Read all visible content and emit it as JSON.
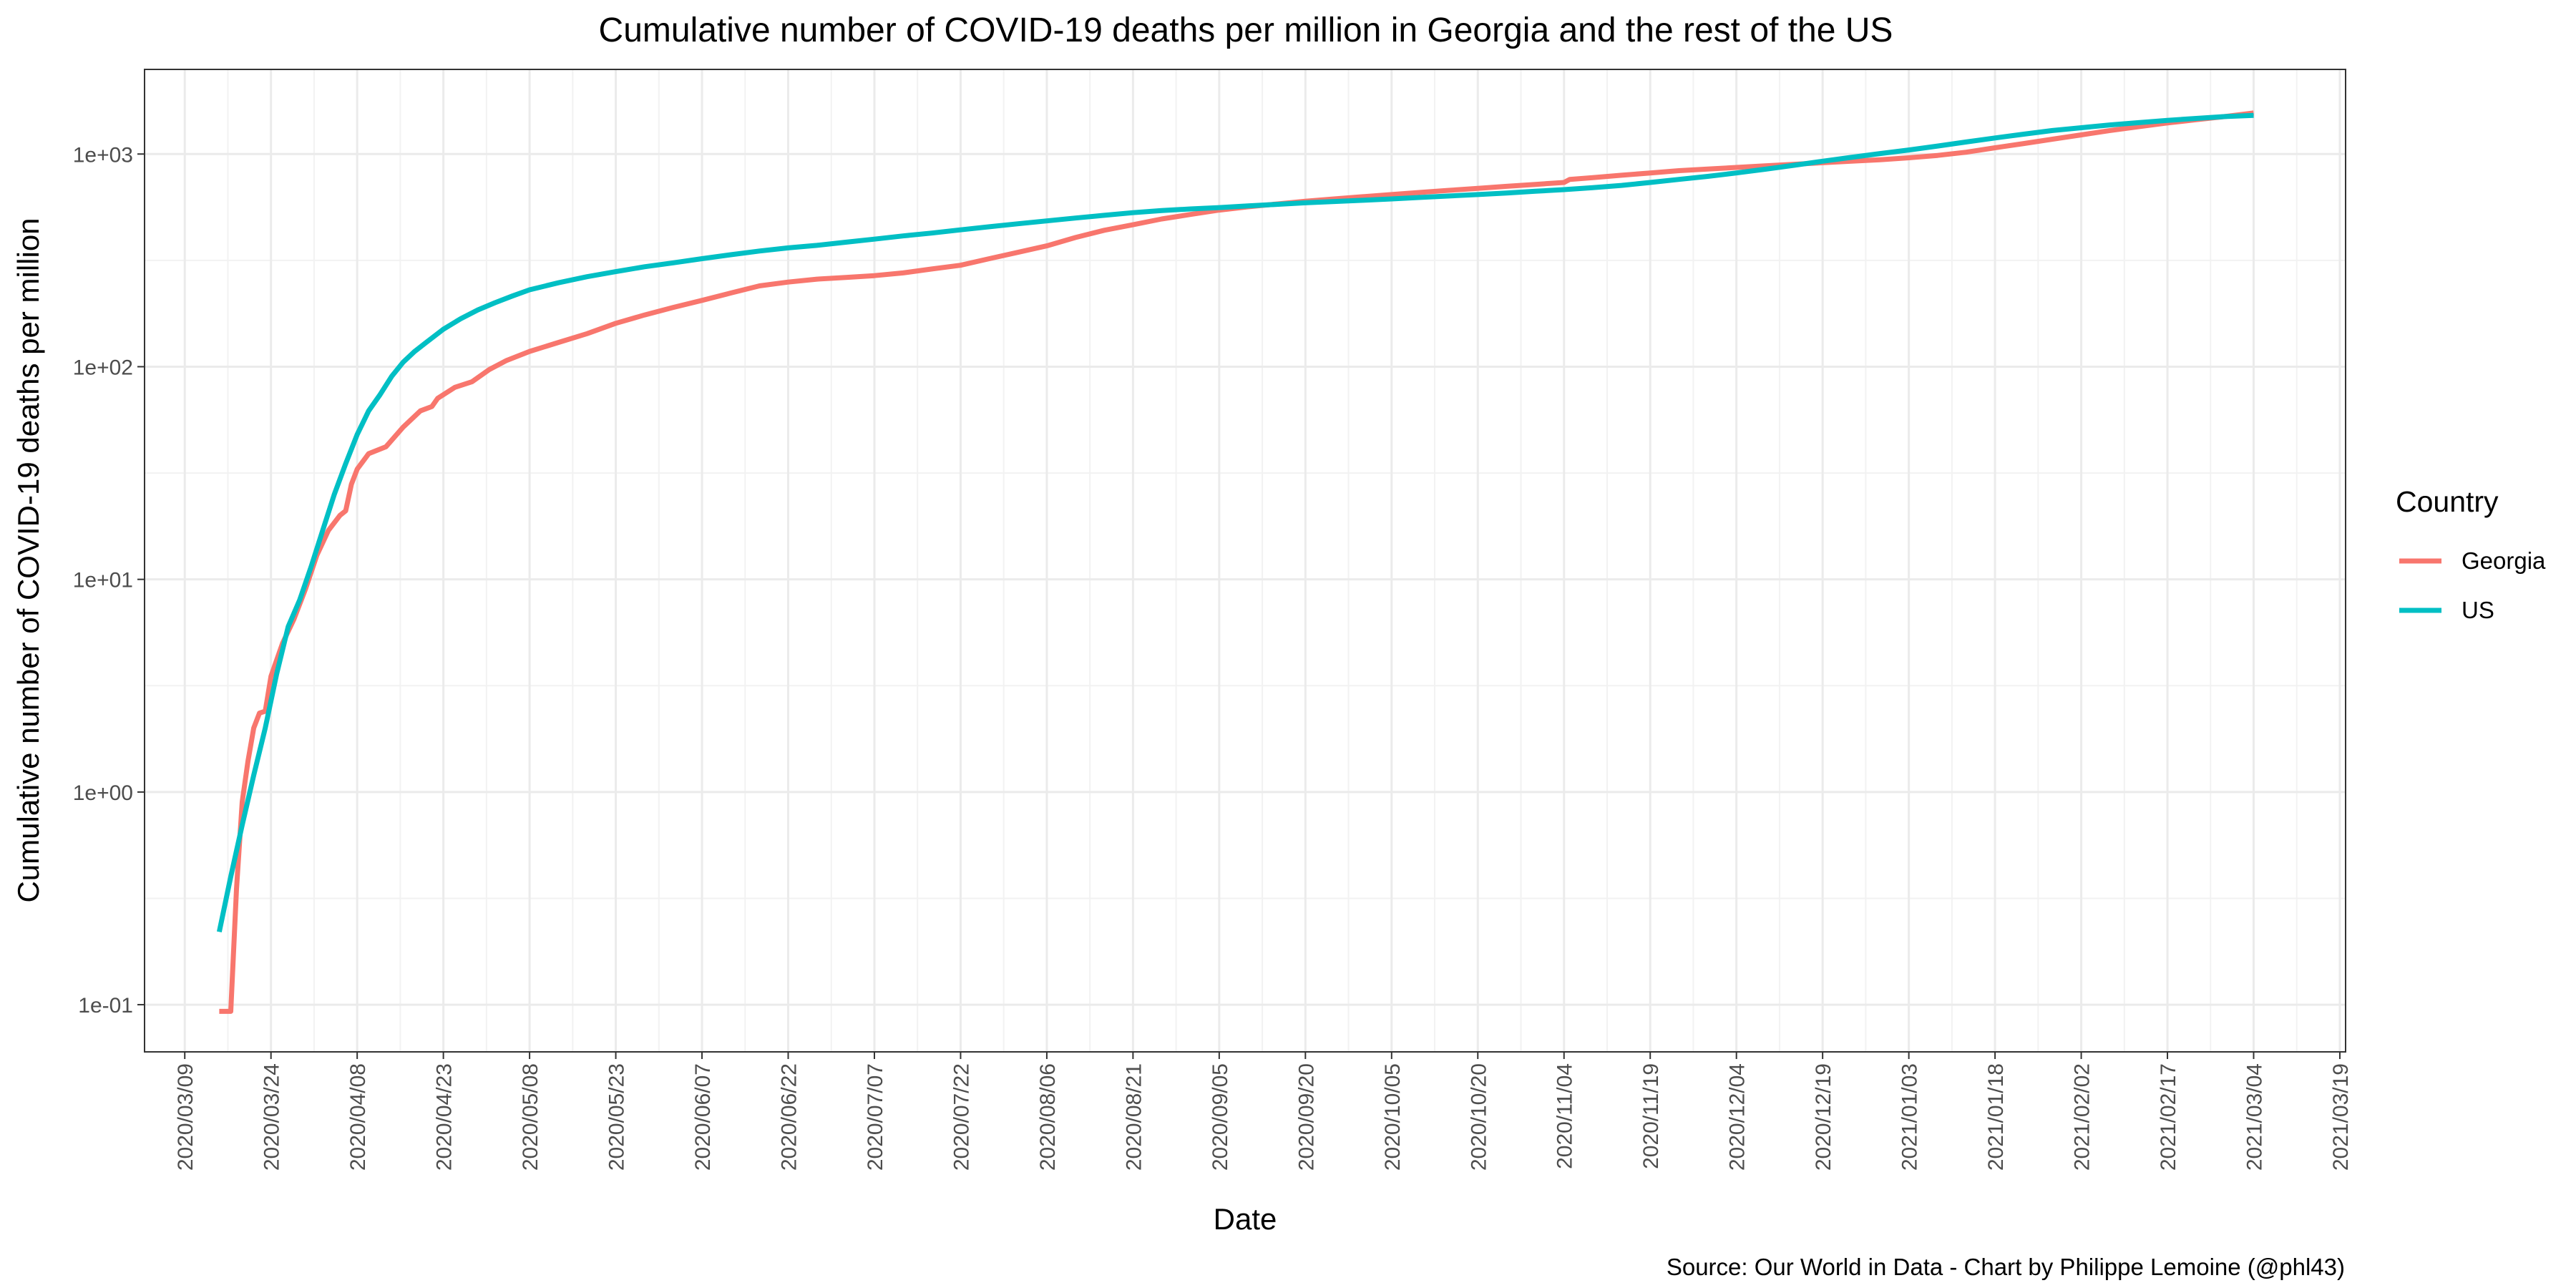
{
  "chart_data": {
    "type": "line",
    "title": "Cumulative number of COVID-19 deaths per million in Georgia and the rest of the US",
    "xlabel": "Date",
    "ylabel": "Cumulative number of COVID-19 deaths per million",
    "y_scale": "log10",
    "ylim": [
      0.06,
      2500
    ],
    "y_ticks": [
      0.1,
      1,
      10,
      100,
      1000
    ],
    "y_tick_labels": [
      "1e-01",
      "1e+00",
      "1e+01",
      "1e+02",
      "1e+03"
    ],
    "xlim": [
      "2020-03-02",
      "2021-03-20"
    ],
    "x_ticks": [
      "2020/03/09",
      "2020/03/24",
      "2020/04/08",
      "2020/04/23",
      "2020/05/08",
      "2020/05/23",
      "2020/06/07",
      "2020/06/22",
      "2020/07/07",
      "2020/07/22",
      "2020/08/06",
      "2020/08/21",
      "2020/09/05",
      "2020/09/20",
      "2020/10/05",
      "2020/10/20",
      "2020/11/04",
      "2020/11/19",
      "2020/12/04",
      "2020/12/19",
      "2021/01/03",
      "2021/01/18",
      "2021/02/02",
      "2021/02/17",
      "2021/03/04",
      "2021/03/19"
    ],
    "grid": true,
    "legend": {
      "title": "Country",
      "placement": "right"
    },
    "series": [
      {
        "name": "Georgia",
        "color": "#F8766D",
        "points": [
          [
            "2020-03-15",
            0.093
          ],
          [
            "2020-03-16",
            0.093
          ],
          [
            "2020-03-17",
            0.093
          ],
          [
            "2020-03-18",
            0.35
          ],
          [
            "2020-03-19",
            0.9
          ],
          [
            "2020-03-20",
            1.4
          ],
          [
            "2020-03-21",
            2.0
          ],
          [
            "2020-03-22",
            2.35
          ],
          [
            "2020-03-23",
            2.4
          ],
          [
            "2020-03-24",
            3.5
          ],
          [
            "2020-03-26",
            5.0
          ],
          [
            "2020-03-28",
            6.5
          ],
          [
            "2020-03-30",
            9.0
          ],
          [
            "2020-04-01",
            13.0
          ],
          [
            "2020-04-03",
            17.0
          ],
          [
            "2020-04-05",
            20.0
          ],
          [
            "2020-04-06",
            21.0
          ],
          [
            "2020-04-07",
            28.0
          ],
          [
            "2020-04-08",
            33.0
          ],
          [
            "2020-04-10",
            39.0
          ],
          [
            "2020-04-13",
            42.0
          ],
          [
            "2020-04-16",
            52.0
          ],
          [
            "2020-04-19",
            62.0
          ],
          [
            "2020-04-21",
            65.0
          ],
          [
            "2020-04-22",
            71.0
          ],
          [
            "2020-04-25",
            80.0
          ],
          [
            "2020-04-28",
            85.0
          ],
          [
            "2020-05-01",
            97.0
          ],
          [
            "2020-05-04",
            107.0
          ],
          [
            "2020-05-08",
            118.0
          ],
          [
            "2020-05-13",
            130.0
          ],
          [
            "2020-05-18",
            143.0
          ],
          [
            "2020-05-23",
            160.0
          ],
          [
            "2020-05-28",
            175.0
          ],
          [
            "2020-06-02",
            190.0
          ],
          [
            "2020-06-07",
            205.0
          ],
          [
            "2020-06-12",
            222.0
          ],
          [
            "2020-06-17",
            240.0
          ],
          [
            "2020-06-22",
            250.0
          ],
          [
            "2020-06-27",
            258.0
          ],
          [
            "2020-07-02",
            263.0
          ],
          [
            "2020-07-07",
            268.0
          ],
          [
            "2020-07-12",
            276.0
          ],
          [
            "2020-07-17",
            288.0
          ],
          [
            "2020-07-22",
            300.0
          ],
          [
            "2020-07-27",
            322.0
          ],
          [
            "2020-08-01",
            345.0
          ],
          [
            "2020-08-06",
            370.0
          ],
          [
            "2020-08-11",
            405.0
          ],
          [
            "2020-08-16",
            438.0
          ],
          [
            "2020-08-21",
            465.0
          ],
          [
            "2020-08-26",
            495.0
          ],
          [
            "2020-08-31",
            520.0
          ],
          [
            "2020-09-05",
            545.0
          ],
          [
            "2020-09-10",
            565.0
          ],
          [
            "2020-09-15",
            582.0
          ],
          [
            "2020-09-20",
            600.0
          ],
          [
            "2020-09-25",
            615.0
          ],
          [
            "2020-09-30",
            630.0
          ],
          [
            "2020-10-05",
            645.0
          ],
          [
            "2020-10-10",
            660.0
          ],
          [
            "2020-10-15",
            675.0
          ],
          [
            "2020-10-20",
            690.0
          ],
          [
            "2020-10-25",
            705.0
          ],
          [
            "2020-10-30",
            720.0
          ],
          [
            "2020-11-04",
            735.0
          ],
          [
            "2020-11-05",
            760.0
          ],
          [
            "2020-11-09",
            775.0
          ],
          [
            "2020-11-14",
            795.0
          ],
          [
            "2020-11-19",
            815.0
          ],
          [
            "2020-11-24",
            835.0
          ],
          [
            "2020-11-29",
            850.0
          ],
          [
            "2020-12-04",
            865.0
          ],
          [
            "2020-12-09",
            880.0
          ],
          [
            "2020-12-14",
            895.0
          ],
          [
            "2020-12-19",
            910.0
          ],
          [
            "2020-12-24",
            925.0
          ],
          [
            "2020-12-29",
            940.0
          ],
          [
            "2021-01-03",
            960.0
          ],
          [
            "2021-01-08",
            985.0
          ],
          [
            "2021-01-13",
            1020.0
          ],
          [
            "2021-01-18",
            1070.0
          ],
          [
            "2021-01-23",
            1120.0
          ],
          [
            "2021-01-28",
            1175.0
          ],
          [
            "2021-02-02",
            1230.0
          ],
          [
            "2021-02-07",
            1290.0
          ],
          [
            "2021-02-12",
            1345.0
          ],
          [
            "2021-02-17",
            1400.0
          ],
          [
            "2021-02-22",
            1450.0
          ],
          [
            "2021-02-27",
            1500.0
          ],
          [
            "2021-03-04",
            1560.0
          ]
        ]
      },
      {
        "name": "US",
        "color": "#00BFC4",
        "points": [
          [
            "2020-03-15",
            0.22
          ],
          [
            "2020-03-17",
            0.4
          ],
          [
            "2020-03-19",
            0.7
          ],
          [
            "2020-03-21",
            1.2
          ],
          [
            "2020-03-23",
            2.0
          ],
          [
            "2020-03-25",
            3.6
          ],
          [
            "2020-03-27",
            6.0
          ],
          [
            "2020-03-29",
            8.0
          ],
          [
            "2020-03-31",
            11.5
          ],
          [
            "2020-04-02",
            17.0
          ],
          [
            "2020-04-04",
            25.0
          ],
          [
            "2020-04-06",
            35.0
          ],
          [
            "2020-04-08",
            48.0
          ],
          [
            "2020-04-10",
            62.0
          ],
          [
            "2020-04-12",
            74.0
          ],
          [
            "2020-04-14",
            90.0
          ],
          [
            "2020-04-16",
            105.0
          ],
          [
            "2020-04-18",
            118.0
          ],
          [
            "2020-04-20",
            130.0
          ],
          [
            "2020-04-23",
            150.0
          ],
          [
            "2020-04-26",
            168.0
          ],
          [
            "2020-04-29",
            185.0
          ],
          [
            "2020-05-02",
            200.0
          ],
          [
            "2020-05-05",
            215.0
          ],
          [
            "2020-05-08",
            230.0
          ],
          [
            "2020-05-13",
            248.0
          ],
          [
            "2020-05-18",
            265.0
          ],
          [
            "2020-05-23",
            280.0
          ],
          [
            "2020-05-28",
            295.0
          ],
          [
            "2020-06-02",
            308.0
          ],
          [
            "2020-06-07",
            322.0
          ],
          [
            "2020-06-12",
            336.0
          ],
          [
            "2020-06-17",
            350.0
          ],
          [
            "2020-06-22",
            362.0
          ],
          [
            "2020-06-27",
            372.0
          ],
          [
            "2020-07-02",
            385.0
          ],
          [
            "2020-07-07",
            398.0
          ],
          [
            "2020-07-12",
            412.0
          ],
          [
            "2020-07-17",
            425.0
          ],
          [
            "2020-07-22",
            440.0
          ],
          [
            "2020-07-27",
            455.0
          ],
          [
            "2020-08-01",
            470.0
          ],
          [
            "2020-08-06",
            485.0
          ],
          [
            "2020-08-11",
            500.0
          ],
          [
            "2020-08-16",
            515.0
          ],
          [
            "2020-08-21",
            530.0
          ],
          [
            "2020-08-26",
            542.0
          ],
          [
            "2020-08-31",
            552.0
          ],
          [
            "2020-09-05",
            560.0
          ],
          [
            "2020-09-10",
            570.0
          ],
          [
            "2020-09-15",
            580.0
          ],
          [
            "2020-09-20",
            590.0
          ],
          [
            "2020-09-25",
            598.0
          ],
          [
            "2020-09-30",
            606.0
          ],
          [
            "2020-10-05",
            615.0
          ],
          [
            "2020-10-10",
            625.0
          ],
          [
            "2020-10-15",
            635.0
          ],
          [
            "2020-10-20",
            645.0
          ],
          [
            "2020-10-25",
            656.0
          ],
          [
            "2020-10-30",
            668.0
          ],
          [
            "2020-11-04",
            680.0
          ],
          [
            "2020-11-09",
            695.0
          ],
          [
            "2020-11-14",
            712.0
          ],
          [
            "2020-11-19",
            735.0
          ],
          [
            "2020-11-24",
            760.0
          ],
          [
            "2020-11-29",
            785.0
          ],
          [
            "2020-12-04",
            815.0
          ],
          [
            "2020-12-09",
            848.0
          ],
          [
            "2020-12-14",
            885.0
          ],
          [
            "2020-12-19",
            925.0
          ],
          [
            "2020-12-24",
            965.0
          ],
          [
            "2020-12-29",
            1005.0
          ],
          [
            "2021-01-03",
            1045.0
          ],
          [
            "2021-01-08",
            1090.0
          ],
          [
            "2021-01-13",
            1140.0
          ],
          [
            "2021-01-18",
            1190.0
          ],
          [
            "2021-01-23",
            1240.0
          ],
          [
            "2021-01-28",
            1290.0
          ],
          [
            "2021-02-02",
            1330.0
          ],
          [
            "2021-02-07",
            1370.0
          ],
          [
            "2021-02-12",
            1405.0
          ],
          [
            "2021-02-17",
            1440.0
          ],
          [
            "2021-02-22",
            1470.0
          ],
          [
            "2021-02-27",
            1500.0
          ],
          [
            "2021-03-04",
            1520.0
          ]
        ]
      }
    ],
    "caption": "Source: Our World in Data - Chart by Philippe Lemoine (@phl43)"
  }
}
